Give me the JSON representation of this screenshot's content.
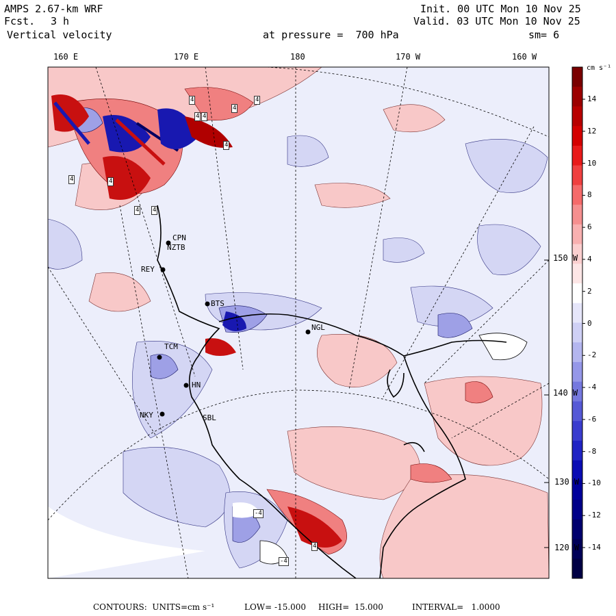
{
  "header": {
    "model": "AMPS 2.67-km WRF",
    "fcst_label": "Fcst.",
    "fcst_value": "3 h",
    "field": "Vertical velocity",
    "init": "Init. 00 UTC Mon 10 Nov 25",
    "valid": "Valid. 03 UTC Mon 10 Nov 25",
    "pressure": "at pressure =  700 hPa",
    "smoothing": "sm= 6"
  },
  "lon_labels": [
    "160 E",
    "170 E",
    "180",
    "170 W",
    "160 W"
  ],
  "lat_labels": [
    "150 W",
    "140 W",
    "130 W",
    "120 W"
  ],
  "colorbar": {
    "units": "cm s⁻¹",
    "ticks": [
      "14",
      "12",
      "10",
      "8",
      "6",
      "4",
      "2",
      "0",
      "-2",
      "-4",
      "-6",
      "-8",
      "-10",
      "-12",
      "-14"
    ],
    "colors": [
      "#7a0000",
      "#9c0000",
      "#b80000",
      "#d40000",
      "#e81a1a",
      "#f04040",
      "#f56a6a",
      "#f58f8f",
      "#f8b0b0",
      "#fbcfcf",
      "#fde6e6",
      "#ffffff",
      "#e6e6fa",
      "#cfd0f5",
      "#b4b6ef",
      "#9597e8",
      "#7578df",
      "#5659d6",
      "#3a3cce",
      "#2023c4",
      "#0a0cb4",
      "#00009c",
      "#000088",
      "#00006e",
      "#000058",
      "#000044"
    ]
  },
  "stations": [
    "CPN",
    "NZTB",
    "REY",
    "BTS",
    "NGL",
    "TCM",
    "HN",
    "NKY",
    "SBL"
  ],
  "contour_labels": [
    "4",
    "4",
    "4",
    "4",
    "4",
    "4",
    "4",
    "4",
    "4",
    "4",
    "4",
    "-4",
    "-4"
  ],
  "footer": {
    "contours": "CONTOURS:  UNITS=cm s⁻¹",
    "low": "LOW= -15.000",
    "high": "HIGH=  15.000",
    "interval": "INTERVAL=   1.0000"
  },
  "palette": {
    "up_light": "#f8c8c8",
    "up_mid": "#f08080",
    "up_strong": "#c81010",
    "down_light": "#d4d6f4",
    "down_mid": "#9ea0e6",
    "down_strong": "#1818b0",
    "background": "#eceefb"
  }
}
